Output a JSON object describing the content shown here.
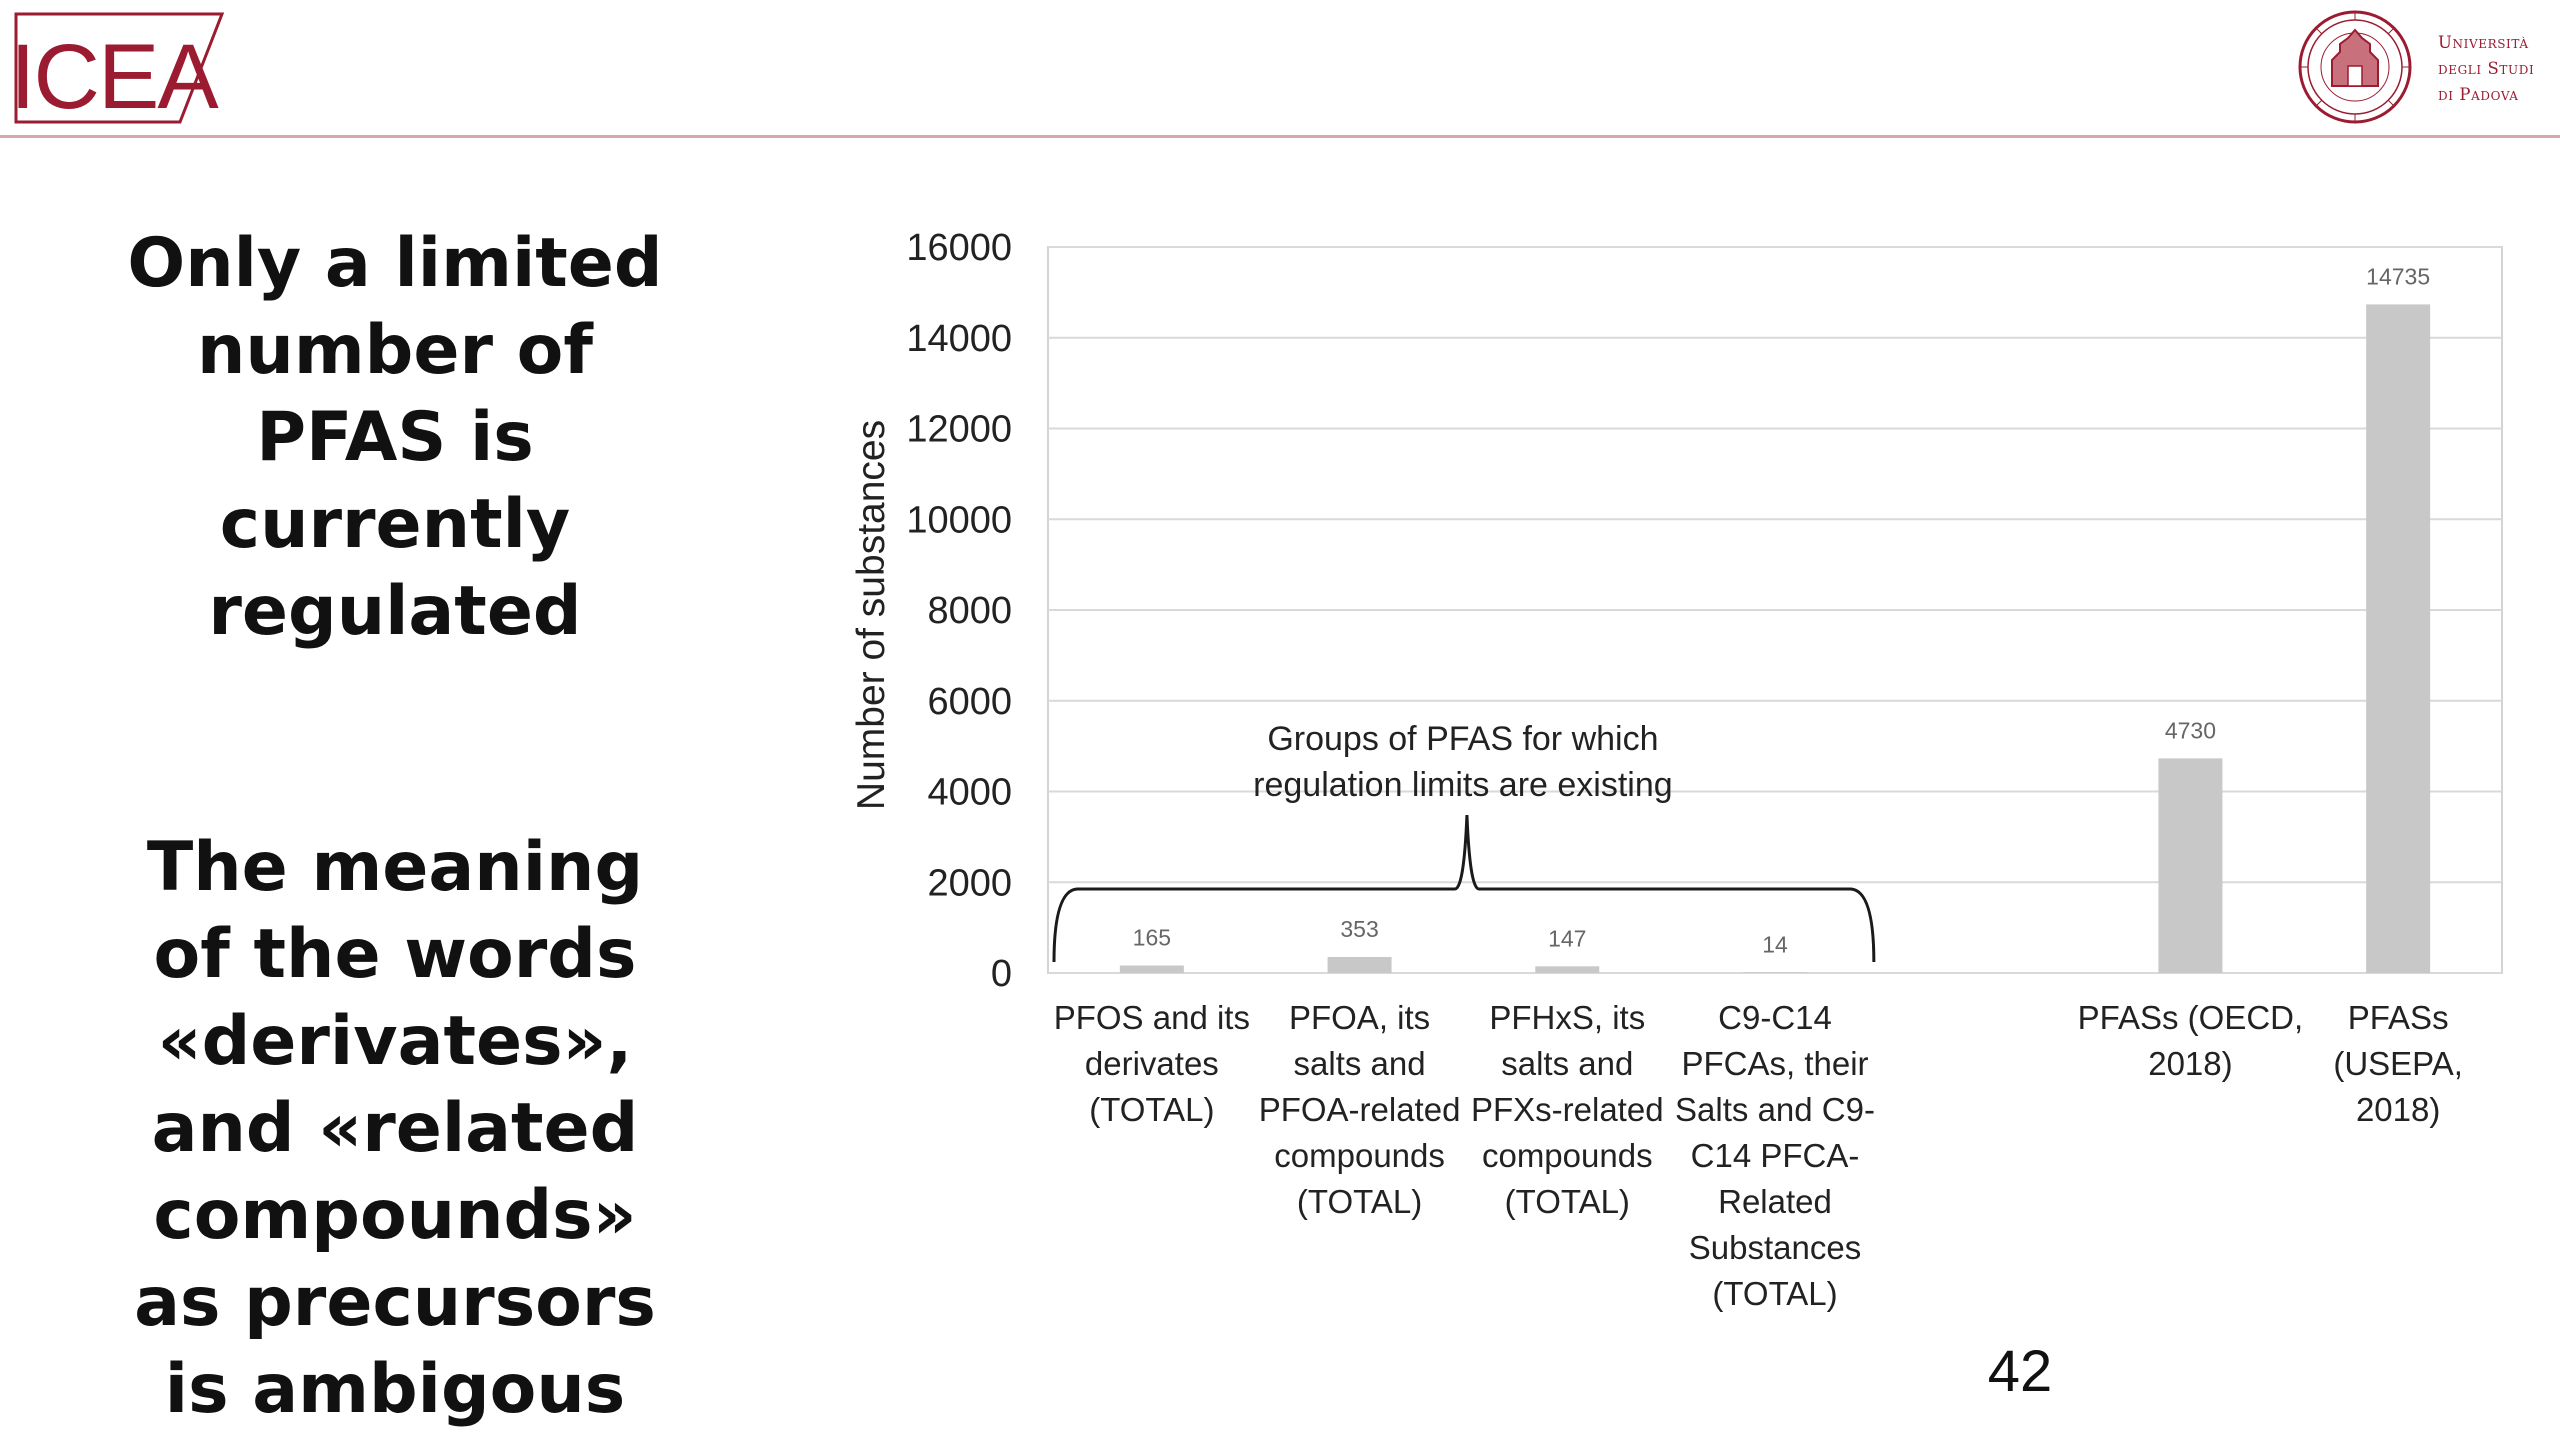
{
  "header": {
    "logo_text": "ICEA",
    "university_lines": [
      "Università",
      "degli Studi",
      "di Padova"
    ]
  },
  "left": {
    "headline_lines": [
      "Only a limited",
      "number of",
      "PFAS is",
      "currently",
      "regulated"
    ],
    "note_lines": [
      "The meaning",
      "of the words",
      "«derivates»,",
      "and «related",
      "compounds»",
      "as precursors",
      "is ambigous"
    ]
  },
  "page_number": "42",
  "colors": {
    "bar": "#c8c8c8",
    "brand": "#9b1b30",
    "header_rule": "#d7a8ae"
  },
  "chart_data": {
    "type": "bar",
    "ylabel": "Number of substances",
    "ylim": [
      0,
      16000
    ],
    "yticks": [
      0,
      2000,
      4000,
      6000,
      8000,
      10000,
      12000,
      14000,
      16000
    ],
    "grid": true,
    "categories": [
      [
        "PFOS and its",
        "derivates",
        "(TOTAL)"
      ],
      [
        "PFOA, its",
        "salts and",
        "PFOA-related",
        "compounds",
        "(TOTAL)"
      ],
      [
        "PFHxS, its",
        "salts and",
        "PFXs-related",
        "compounds",
        "(TOTAL)"
      ],
      [
        "C9-C14",
        "PFCAs, their",
        "Salts and C9-",
        "C14 PFCA-",
        "Related",
        "Substances",
        "(TOTAL)"
      ],
      [],
      [
        "PFASs (OECD,",
        "2018)"
      ],
      [
        "PFASs",
        "(USEPA,",
        "2018)"
      ]
    ],
    "values": [
      165,
      353,
      147,
      14,
      null,
      4730,
      14735
    ],
    "data_labels": [
      "165",
      "353",
      "147",
      "14",
      "",
      "4730",
      "14735"
    ],
    "annotation": {
      "text_lines": [
        "Groups of PFAS for which",
        "regulation limits are existing"
      ],
      "spans_categories": [
        0,
        3
      ]
    }
  }
}
